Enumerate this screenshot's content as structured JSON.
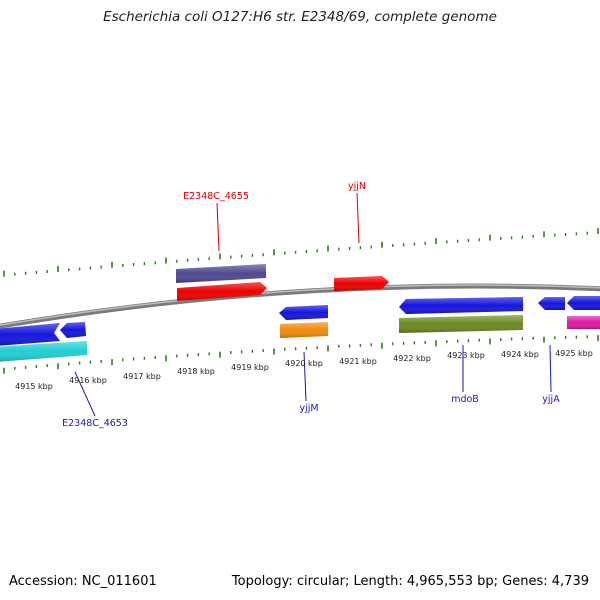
{
  "title": "Escherichia coli O127:H6 str. E2348/69, complete genome",
  "footer": {
    "accession": "Accession: NC_011601",
    "summary": "Topology: circular; Length: 4,965,553 bp; Genes: 4,739"
  },
  "ruler_labels": [
    "4915 kbp",
    "4916 kbp",
    "4917 kbp",
    "4918 kbp",
    "4919 kbp",
    "4920 kbp",
    "4921 kbp",
    "4922 kbp",
    "4923 kbp",
    "4924 kbp",
    "4925 kbp"
  ],
  "gene_labels": [
    "E2348C_4655",
    "yjjN",
    "yjjM",
    "mdoB",
    "yjjA",
    "E2348C_4653"
  ],
  "colors": {
    "backbone": "#888888",
    "tick": "#2d7d1e",
    "label_forward": "#d40000",
    "label_reverse": "#1a1aa8",
    "gene_forward": "#ee0000",
    "gene_reverse": "#1515dd",
    "cds_purple": "#4e4891",
    "cds_cyan": "#1fcfd3",
    "cds_orange": "#f08c0a",
    "cds_olive": "#6c8a22",
    "cds_magenta": "#e01aa5"
  }
}
